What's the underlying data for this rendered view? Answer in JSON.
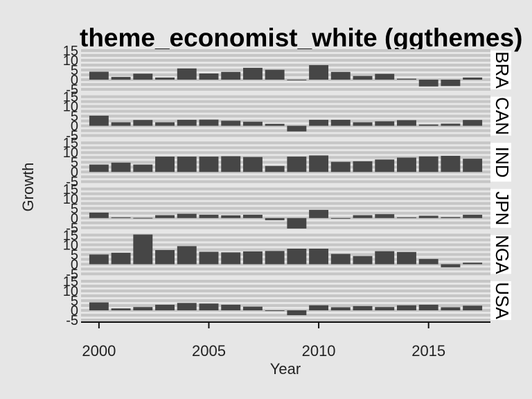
{
  "chart_data": {
    "type": "bar",
    "title": "theme_economist_white (ggthemes)",
    "xlabel": "Year",
    "ylabel": "Growth",
    "x": [
      2000,
      2001,
      2002,
      2003,
      2004,
      2005,
      2006,
      2007,
      2008,
      2009,
      2010,
      2011,
      2012,
      2013,
      2014,
      2015,
      2016,
      2017
    ],
    "x_ticks": [
      2000,
      2005,
      2010,
      2015
    ],
    "y_ticks": [
      -5,
      0,
      5,
      10,
      15
    ],
    "ylim": [
      -5,
      15
    ],
    "grid": true,
    "legend": "none",
    "colors": {
      "bar": "#464646",
      "panel": "#e6e6e6",
      "grid": "#c6c6c6",
      "strip": "#ffffff"
    },
    "series": [
      {
        "name": "BRA",
        "values": [
          4.1,
          1.4,
          3.1,
          1.1,
          5.8,
          3.2,
          4.0,
          6.1,
          5.1,
          -0.1,
          7.5,
          4.0,
          1.9,
          3.0,
          0.5,
          -3.5,
          -3.3,
          1.1
        ]
      },
      {
        "name": "CAN",
        "values": [
          5.2,
          1.8,
          3.0,
          1.8,
          3.1,
          3.2,
          2.6,
          2.1,
          1.0,
          -2.9,
          3.1,
          3.1,
          1.8,
          2.3,
          2.9,
          0.7,
          1.1,
          3.0
        ]
      },
      {
        "name": "IND",
        "values": [
          3.8,
          4.8,
          3.8,
          7.9,
          7.9,
          7.9,
          8.1,
          7.7,
          3.1,
          7.9,
          8.5,
          5.2,
          5.5,
          6.4,
          7.4,
          8.0,
          8.3,
          6.8
        ]
      },
      {
        "name": "JPN",
        "values": [
          2.8,
          0.4,
          0.1,
          1.5,
          2.2,
          1.7,
          1.4,
          1.7,
          -1.1,
          -5.4,
          4.2,
          -0.1,
          1.5,
          2.0,
          0.4,
          1.2,
          0.5,
          1.7
        ]
      },
      {
        "name": "NGA",
        "values": [
          5.0,
          5.9,
          15.3,
          7.3,
          9.3,
          6.4,
          6.1,
          6.6,
          6.8,
          8.0,
          8.0,
          5.3,
          4.2,
          6.7,
          6.3,
          2.7,
          -1.6,
          0.8
        ]
      },
      {
        "name": "USA",
        "values": [
          4.1,
          1.0,
          1.7,
          2.9,
          3.8,
          3.5,
          2.9,
          1.9,
          -0.1,
          -2.5,
          2.6,
          1.6,
          2.2,
          1.7,
          2.6,
          2.9,
          1.6,
          2.4
        ]
      }
    ]
  }
}
